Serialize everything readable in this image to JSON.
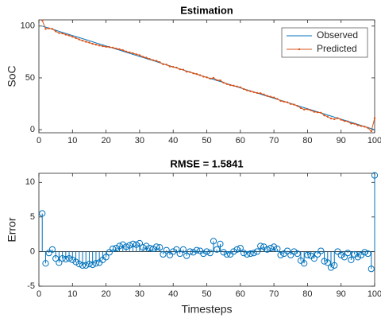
{
  "chart_data": [
    {
      "type": "line",
      "title": "Estimation",
      "ylabel": "SoC",
      "x": [
        1,
        2,
        3,
        4,
        5,
        6,
        7,
        8,
        9,
        10,
        11,
        12,
        13,
        14,
        15,
        16,
        17,
        18,
        19,
        20,
        21,
        22,
        23,
        24,
        25,
        26,
        27,
        28,
        29,
        30,
        31,
        32,
        33,
        34,
        35,
        36,
        37,
        38,
        39,
        40,
        41,
        42,
        43,
        44,
        45,
        46,
        47,
        48,
        49,
        50,
        51,
        52,
        53,
        54,
        55,
        56,
        57,
        58,
        59,
        60,
        61,
        62,
        63,
        64,
        65,
        66,
        67,
        68,
        69,
        70,
        71,
        72,
        73,
        74,
        75,
        76,
        77,
        78,
        79,
        80,
        81,
        82,
        83,
        84,
        85,
        86,
        87,
        88,
        89,
        90,
        91,
        92,
        93,
        94,
        95,
        96,
        97,
        98,
        99,
        100
      ],
      "series": [
        {
          "name": "Observed",
          "color": "#0072bd",
          "marker": false,
          "values": [
            100,
            99.0,
            98.0,
            97.0,
            96.0,
            94.9,
            93.9,
            92.9,
            91.9,
            90.9,
            89.9,
            88.9,
            87.9,
            86.9,
            85.9,
            84.8,
            83.8,
            82.8,
            81.8,
            80.8,
            79.8,
            78.8,
            77.8,
            76.8,
            75.8,
            74.7,
            73.7,
            72.7,
            71.7,
            70.7,
            69.7,
            68.7,
            67.7,
            66.7,
            65.7,
            64.6,
            63.6,
            62.6,
            61.6,
            60.6,
            59.6,
            58.6,
            57.6,
            56.6,
            55.6,
            54.5,
            53.5,
            52.5,
            51.5,
            50.5,
            49.5,
            48.5,
            47.5,
            46.5,
            45.5,
            44.4,
            43.4,
            42.4,
            41.4,
            40.4,
            39.4,
            38.4,
            37.4,
            36.4,
            35.4,
            34.3,
            33.3,
            32.3,
            31.3,
            30.3,
            29.3,
            28.3,
            27.3,
            26.3,
            25.3,
            24.2,
            23.2,
            22.2,
            21.2,
            20.2,
            19.2,
            18.2,
            17.2,
            16.2,
            15.2,
            14.1,
            13.1,
            12.1,
            11.1,
            10.1,
            9.1,
            8.1,
            7.1,
            6.1,
            5.1,
            4.0,
            3.0,
            2.0,
            1.0,
            0
          ]
        },
        {
          "name": "Predicted",
          "color": "#d95319",
          "marker": true,
          "values": [
            105.5,
            97.3,
            97.8,
            97.3,
            95.0,
            93.3,
            92.9,
            91.8,
            90.9,
            89.7,
            88.4,
            87.1,
            85.9,
            84.9,
            84.1,
            82.9,
            82.1,
            81.2,
            80.6,
            80.0,
            79.7,
            79.2,
            78.3,
            77.6,
            76.8,
            75.4,
            74.6,
            73.8,
            72.7,
            71.9,
            70.3,
            69.5,
            68.2,
            67.1,
            66.4,
            65.2,
            63.2,
            62.8,
            61.1,
            60.6,
            59.9,
            58.3,
            57.9,
            56.0,
            55.6,
            54.4,
            53.7,
            52.6,
            51.2,
            50.5,
            49.3,
            50.0,
            47.8,
            47.6,
            45.4,
            44.0,
            43.0,
            42.4,
            41.7,
            40.9,
            39.2,
            38.0,
            37.1,
            36.2,
            35.4,
            35.1,
            34.0,
            32.6,
            31.8,
            31.0,
            29.7,
            27.8,
            27.0,
            26.4,
            24.8,
            24.2,
            22.9,
            20.9,
            19.5,
            19.7,
            18.6,
            17.2,
            16.8,
            16.3,
            13.8,
            12.5,
            10.8,
            10.1,
            11.1,
            9.6,
            8.3,
            7.9,
            5.9,
            5.7,
            4.3,
            3.5,
            2.9,
            1.7,
            -1.5,
            11
          ]
        }
      ],
      "xlim": [
        0,
        100
      ],
      "ylim": [
        -3,
        106
      ],
      "xticks": [
        0,
        10,
        20,
        30,
        40,
        50,
        60,
        70,
        80,
        90,
        100
      ],
      "yticks": [
        0,
        50,
        100
      ],
      "legend": "northeast"
    },
    {
      "type": "stem",
      "title": "RMSE = 1.5841",
      "xlabel": "Timesteps",
      "ylabel": "Error",
      "x": [
        1,
        2,
        3,
        4,
        5,
        6,
        7,
        8,
        9,
        10,
        11,
        12,
        13,
        14,
        15,
        16,
        17,
        18,
        19,
        20,
        21,
        22,
        23,
        24,
        25,
        26,
        27,
        28,
        29,
        30,
        31,
        32,
        33,
        34,
        35,
        36,
        37,
        38,
        39,
        40,
        41,
        42,
        43,
        44,
        45,
        46,
        47,
        48,
        49,
        50,
        51,
        52,
        53,
        54,
        55,
        56,
        57,
        58,
        59,
        60,
        61,
        62,
        63,
        64,
        65,
        66,
        67,
        68,
        69,
        70,
        71,
        72,
        73,
        74,
        75,
        76,
        77,
        78,
        79,
        80,
        81,
        82,
        83,
        84,
        85,
        86,
        87,
        88,
        89,
        90,
        91,
        92,
        93,
        94,
        95,
        96,
        97,
        98,
        99,
        100
      ],
      "color": "#0072bd",
      "values": [
        5.5,
        -1.7,
        -0.2,
        0.3,
        -1.0,
        -1.6,
        -1.0,
        -1.1,
        -1.0,
        -1.2,
        -1.5,
        -1.8,
        -2.0,
        -2.0,
        -1.8,
        -1.9,
        -1.7,
        -1.6,
        -1.2,
        -0.8,
        -0.1,
        0.4,
        0.5,
        0.8,
        1.0,
        0.7,
        0.9,
        1.1,
        1.0,
        1.2,
        0.6,
        0.8,
        0.5,
        0.4,
        0.7,
        0.6,
        -0.4,
        0.2,
        -0.5,
        0.0,
        0.3,
        -0.3,
        0.3,
        -0.6,
        0.0,
        -0.1,
        0.2,
        0.1,
        -0.3,
        0.0,
        -0.2,
        1.5,
        0.3,
        1.1,
        -0.1,
        -0.4,
        -0.4,
        0.0,
        0.3,
        0.5,
        -0.2,
        -0.4,
        -0.3,
        -0.2,
        0.0,
        0.8,
        0.7,
        0.3,
        0.5,
        0.7,
        0.4,
        -0.5,
        -0.3,
        0.1,
        -0.5,
        0.0,
        -0.3,
        -1.3,
        -1.7,
        -0.5,
        -0.6,
        -1.0,
        -0.4,
        0.1,
        -1.4,
        -1.6,
        -2.3,
        -2.0,
        0.0,
        -0.5,
        -0.8,
        -0.2,
        -1.2,
        -0.4,
        -0.8,
        -0.5,
        -0.1,
        -0.3,
        -2.5,
        11
      ],
      "xlim": [
        0,
        100
      ],
      "ylim": [
        -5,
        11.3
      ],
      "xticks": [
        0,
        10,
        20,
        30,
        40,
        50,
        60,
        70,
        80,
        90,
        100
      ],
      "yticks": [
        -5,
        0,
        5,
        10
      ]
    }
  ]
}
